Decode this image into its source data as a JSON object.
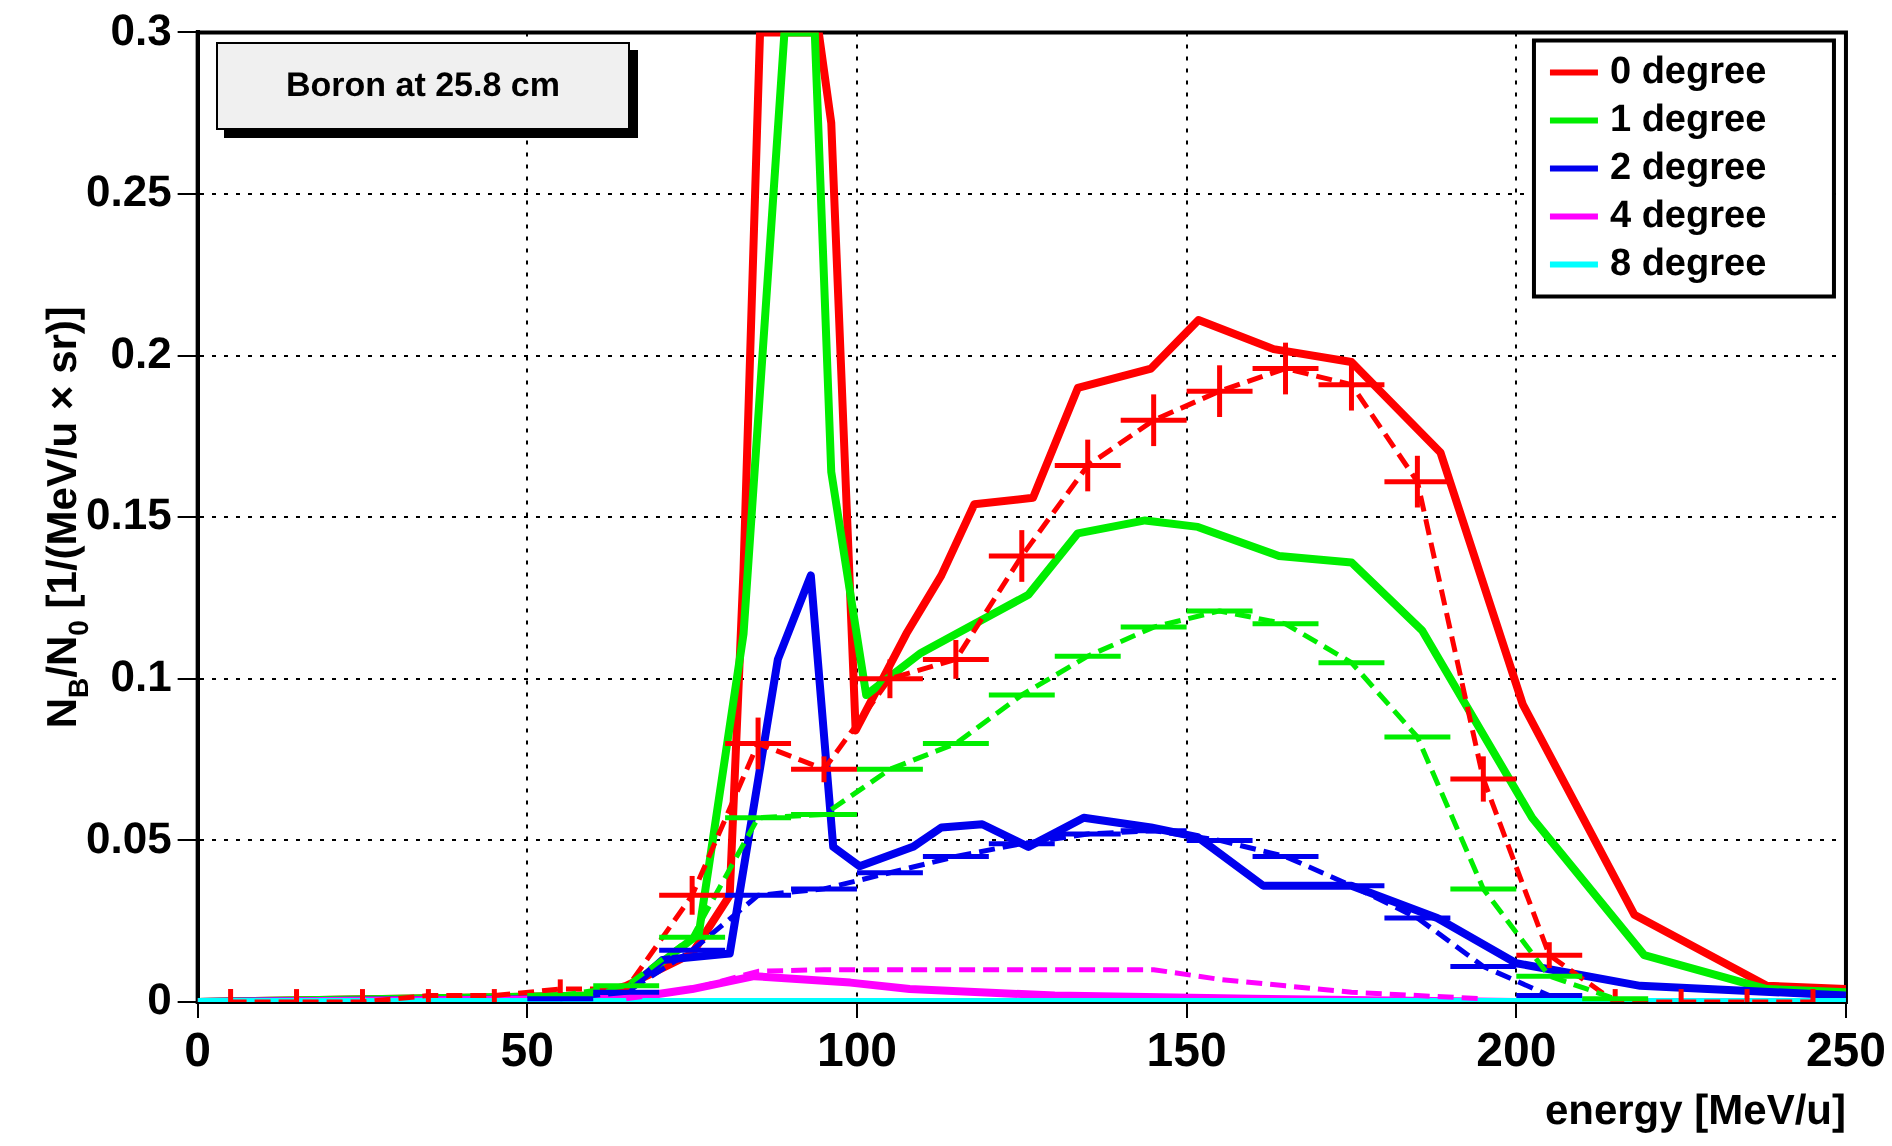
{
  "chart_data": {
    "type": "line",
    "xlabel": "energy [MeV/u]",
    "ylabel": "N$_{B}$/N$_{0}$ [1/(MeV/u × sr)]",
    "annotations": [
      "Boron at 25.8 cm"
    ],
    "xlim": [
      0,
      250
    ],
    "xticks": [
      0,
      50,
      100,
      150,
      200,
      250
    ],
    "ylim": [
      0,
      0.3
    ],
    "yticks": [
      0,
      0.05,
      0.1,
      0.15,
      0.2,
      0.25,
      0.3
    ],
    "grid": true,
    "legend": "top right",
    "marker": "none",
    "series": [
      {
        "name": "0 degree",
        "color": "#ff0000",
        "line_style": "solid",
        "x": [
          0,
          60,
          65,
          75,
          80.7,
          82.8,
          85.3,
          94.2,
          96.1,
          99.8,
          107.5,
          112.8,
          117.8,
          126.7,
          133.5,
          144.6,
          151.8,
          163.2,
          175,
          188.5,
          201,
          217.9,
          238,
          250
        ],
        "values": [
          0,
          0.002,
          0.005,
          0.015,
          0.033,
          0.134,
          0.3,
          0.3,
          0.272,
          0.084,
          0.114,
          0.132,
          0.154,
          0.156,
          0.19,
          0.196,
          0.211,
          0.202,
          0.198,
          0.17,
          0.092,
          0.027,
          0.005,
          0.004
        ]
      },
      {
        "name": "1 degree",
        "color": "#00ee00",
        "line_style": "solid",
        "x": [
          0,
          60,
          65,
          76,
          82.8,
          89,
          93.6,
          96.1,
          101.4,
          109.7,
          126,
          133.5,
          143.7,
          151.7,
          164,
          175,
          185.7,
          202.4,
          219.4,
          238,
          250
        ],
        "values": [
          0,
          0.002,
          0.004,
          0.021,
          0.114,
          0.3,
          0.3,
          0.164,
          0.095,
          0.108,
          0.126,
          0.145,
          0.149,
          0.147,
          0.138,
          0.136,
          0.115,
          0.057,
          0.0145,
          0.004,
          0.003
        ]
      },
      {
        "name": "2 degree",
        "color": "#0000ee",
        "line_style": "solid",
        "x": [
          0,
          60,
          65,
          70.5,
          80.7,
          88,
          93,
          96.4,
          100.4,
          108.5,
          112.8,
          119,
          126,
          134.4,
          144.6,
          151.7,
          161.6,
          175,
          188,
          200,
          218.8,
          250
        ],
        "values": [
          0,
          0.001,
          0.003,
          0.013,
          0.015,
          0.106,
          0.132,
          0.048,
          0.042,
          0.048,
          0.054,
          0.055,
          0.048,
          0.057,
          0.054,
          0.051,
          0.036,
          0.036,
          0.026,
          0.012,
          0.005,
          0.002
        ]
      },
      {
        "name": "4 degree",
        "color": "#ff00ff",
        "line_style": "solid",
        "x": [
          0,
          65,
          75,
          84.4,
          99,
          108,
          130,
          160,
          200,
          250
        ],
        "values": [
          0,
          0.001,
          0.004,
          0.008,
          0.006,
          0.004,
          0.002,
          0.001,
          0,
          0
        ]
      },
      {
        "name": "8 degree",
        "color": "#00ffff",
        "line_style": "solid",
        "x": [
          0,
          250
        ],
        "values": [
          0,
          0
        ]
      },
      {
        "color": "#ff0000",
        "line_style": "dashed",
        "x": [
          5,
          15,
          25,
          35,
          45,
          55,
          65,
          75,
          85,
          95,
          105,
          115,
          125,
          135,
          145,
          155,
          165,
          175,
          185,
          195,
          205,
          215,
          225,
          235,
          245
        ],
        "values": [
          0,
          0,
          0,
          0.002,
          0.002,
          0.004,
          0.004,
          0.033,
          0.08,
          0.072,
          0.1,
          0.106,
          0.138,
          0.166,
          0.18,
          0.189,
          0.196,
          0.191,
          0.161,
          0.069,
          0.0145,
          0,
          0,
          0,
          0
        ],
        "errors": [
          [
            0,
            0.004
          ],
          [
            0,
            0.004
          ],
          [
            0,
            0.004
          ],
          0.002,
          0.002,
          0.003,
          null,
          0.006,
          0.008,
          0.004,
          0.006,
          0.006,
          0.008,
          0.008,
          0.008,
          0.008,
          0.008,
          0.008,
          0.008,
          0.007,
          0.004,
          [
            0,
            0.004
          ],
          [
            0,
            0.004
          ],
          [
            0,
            0.004
          ],
          [
            0,
            0.004
          ]
        ],
        "xerrors": [
          null,
          null,
          null,
          null,
          null,
          null,
          null,
          5,
          5,
          5,
          5,
          5,
          5,
          5,
          5,
          5,
          5,
          5,
          5,
          5,
          5,
          null,
          null,
          null,
          null
        ]
      },
      {
        "color": "#00ee00",
        "line_style": "dashed",
        "x": [
          55,
          65,
          75,
          85,
          95,
          105,
          115,
          125,
          135,
          145,
          155,
          165,
          175,
          185,
          195,
          205,
          215
        ],
        "values": [
          0.002,
          0.005,
          0.02,
          0.057,
          0.058,
          0.072,
          0.08,
          0.095,
          0.107,
          0.116,
          0.121,
          0.117,
          0.105,
          0.082,
          0.035,
          0.008,
          0.001
        ],
        "xerrors": [
          5,
          5,
          5,
          5,
          5,
          5,
          5,
          5,
          5,
          5,
          5,
          5,
          5,
          5,
          5,
          5,
          5
        ]
      },
      {
        "color": "#0000ee",
        "line_style": "dashed",
        "x": [
          55,
          65,
          75,
          85,
          95,
          105,
          115,
          125,
          135,
          145,
          155,
          165,
          175,
          185,
          195,
          205
        ],
        "values": [
          0.001,
          0.003,
          0.016,
          0.033,
          0.035,
          0.04,
          0.045,
          0.049,
          0.052,
          0.053,
          0.05,
          0.045,
          0.036,
          0.026,
          0.011,
          0.002
        ],
        "xerrors": [
          5,
          5,
          5,
          5,
          5,
          5,
          5,
          5,
          5,
          5,
          5,
          5,
          5,
          5,
          5,
          5
        ]
      },
      {
        "color": "#ff00ff",
        "line_style": "dashed",
        "x": [
          65,
          75,
          85,
          95,
          105,
          115,
          125,
          135,
          145,
          155,
          165,
          175,
          185,
          195
        ],
        "values": [
          0.001,
          0.004,
          0.0095,
          0.01,
          0.01,
          0.01,
          0.01,
          0.01,
          0.01,
          0.007,
          0.005,
          0.003,
          0.002,
          0.001
        ]
      }
    ]
  }
}
